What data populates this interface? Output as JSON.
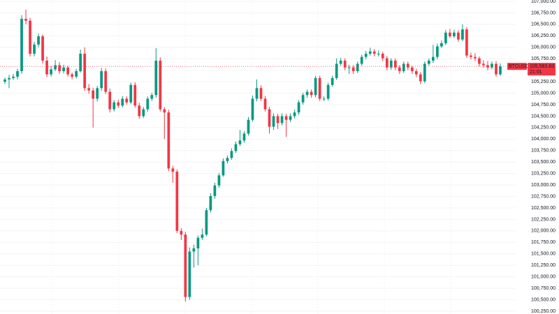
{
  "chart_data": {
    "type": "candlestick",
    "up_color": "#089981",
    "down_color": "#f23645",
    "grid": true,
    "ylim": [
      100250,
      107000
    ],
    "yticks": [
      {
        "value": 107000,
        "label": "107,000.00"
      },
      {
        "value": 106750,
        "label": "106,750.00"
      },
      {
        "value": 106500,
        "label": "106,500.00"
      },
      {
        "value": 106250,
        "label": "106,250.00"
      },
      {
        "value": 106000,
        "label": "106,000.00"
      },
      {
        "value": 105750,
        "label": "105,750.00"
      },
      {
        "value": 105500,
        "label": "105,500.00"
      },
      {
        "value": 105250,
        "label": "105,250.00"
      },
      {
        "value": 105000,
        "label": "105,000.00"
      },
      {
        "value": 104750,
        "label": "104,750.00"
      },
      {
        "value": 104500,
        "label": "104,500.00"
      },
      {
        "value": 104250,
        "label": "104,250.00"
      },
      {
        "value": 104000,
        "label": "104,000.00"
      },
      {
        "value": 103750,
        "label": "103,750.00"
      },
      {
        "value": 103500,
        "label": "103,500.00"
      },
      {
        "value": 103250,
        "label": "103,250.00"
      },
      {
        "value": 103000,
        "label": "103,000.00"
      },
      {
        "value": 102750,
        "label": "102,750.00"
      },
      {
        "value": 102500,
        "label": "102,500.00"
      },
      {
        "value": 102250,
        "label": "102,250.00"
      },
      {
        "value": 102000,
        "label": "102,000.00"
      },
      {
        "value": 101750,
        "label": "101,750.00"
      },
      {
        "value": 101500,
        "label": "101,500.00"
      },
      {
        "value": 101250,
        "label": "101,250.00"
      },
      {
        "value": 101000,
        "label": "101,000.00"
      },
      {
        "value": 100750,
        "label": "100,750.00"
      },
      {
        "value": 100500,
        "label": "100,500.00"
      },
      {
        "value": 100250,
        "label": "100,250.00"
      }
    ],
    "symbol": "BTCUSD",
    "last_price": {
      "value": 105583.83,
      "label": "105,583.83"
    },
    "countdown": "21:01",
    "candles": [
      [
        105250,
        105340,
        105200,
        105300
      ],
      [
        105300,
        105400,
        105110,
        105330
      ],
      [
        105330,
        105420,
        105290,
        105360
      ],
      [
        105360,
        105530,
        105300,
        105480
      ],
      [
        105480,
        106700,
        105420,
        106620
      ],
      [
        106620,
        106820,
        106500,
        106580
      ],
      [
        106580,
        106640,
        105800,
        105860
      ],
      [
        105860,
        106120,
        105800,
        106060
      ],
      [
        106060,
        106300,
        106000,
        106240
      ],
      [
        106240,
        106280,
        105650,
        105710
      ],
      [
        105710,
        105800,
        105350,
        105410
      ],
      [
        105410,
        105600,
        105360,
        105520
      ],
      [
        105520,
        105720,
        105480,
        105610
      ],
      [
        105610,
        105680,
        105420,
        105480
      ],
      [
        105480,
        105620,
        105430,
        105560
      ],
      [
        105560,
        105600,
        105360,
        105410
      ],
      [
        105410,
        105450,
        105300,
        105360
      ],
      [
        105360,
        105530,
        105320,
        105480
      ],
      [
        105480,
        105950,
        105450,
        105860
      ],
      [
        105860,
        106000,
        105050,
        105110
      ],
      [
        105110,
        105200,
        104990,
        105060
      ],
      [
        105060,
        105120,
        104250,
        104880
      ],
      [
        104880,
        105160,
        104820,
        105110
      ],
      [
        105110,
        105550,
        105050,
        105480
      ],
      [
        105480,
        105540,
        104980,
        105030
      ],
      [
        105030,
        105100,
        104580,
        104650
      ],
      [
        104650,
        104850,
        104600,
        104800
      ],
      [
        104800,
        104860,
        104680,
        104730
      ],
      [
        104730,
        104940,
        104690,
        104880
      ],
      [
        104880,
        104930,
        104750,
        104800
      ],
      [
        104800,
        105230,
        104760,
        105180
      ],
      [
        105180,
        105240,
        104680,
        104730
      ],
      [
        104730,
        104790,
        104440,
        104500
      ],
      [
        104500,
        104700,
        104460,
        104650
      ],
      [
        104650,
        104930,
        104600,
        104880
      ],
      [
        104880,
        105010,
        104830,
        104960
      ],
      [
        104960,
        105980,
        104900,
        105710
      ],
      [
        105710,
        105780,
        104600,
        104650
      ],
      [
        104650,
        104700,
        104000,
        104580
      ],
      [
        104580,
        104640,
        103300,
        103360
      ],
      [
        103360,
        103420,
        103050,
        103290
      ],
      [
        103290,
        103340,
        101950,
        102000
      ],
      [
        102000,
        102060,
        101800,
        101920
      ],
      [
        101920,
        101980,
        100460,
        100560
      ],
      [
        100560,
        101640,
        100500,
        101550
      ],
      [
        101550,
        101700,
        101200,
        101620
      ],
      [
        101620,
        101900,
        101250,
        101850
      ],
      [
        101850,
        102050,
        101800,
        101920
      ],
      [
        101920,
        102500,
        101880,
        102450
      ],
      [
        102450,
        102820,
        102400,
        102760
      ],
      [
        102760,
        103050,
        102700,
        102990
      ],
      [
        102990,
        103260,
        102940,
        103210
      ],
      [
        103210,
        103580,
        103180,
        103520
      ],
      [
        103520,
        103640,
        103470,
        103590
      ],
      [
        103590,
        103800,
        103550,
        103740
      ],
      [
        103740,
        103950,
        103700,
        103890
      ],
      [
        103890,
        104200,
        103850,
        103970
      ],
      [
        103970,
        104170,
        103920,
        104120
      ],
      [
        104120,
        104480,
        104080,
        104420
      ],
      [
        104420,
        104950,
        104380,
        104880
      ],
      [
        104880,
        105300,
        104820,
        105110
      ],
      [
        105110,
        105170,
        104830,
        104880
      ],
      [
        104880,
        104940,
        104600,
        104650
      ],
      [
        104650,
        104700,
        104120,
        104270
      ],
      [
        104270,
        104560,
        104200,
        104500
      ],
      [
        104500,
        104550,
        104220,
        104350
      ],
      [
        104350,
        104560,
        104300,
        104500
      ],
      [
        104500,
        104550,
        104050,
        104420
      ],
      [
        104420,
        104560,
        104370,
        104500
      ],
      [
        104500,
        104640,
        104450,
        104580
      ],
      [
        104580,
        104850,
        104530,
        104800
      ],
      [
        104800,
        105010,
        104750,
        104960
      ],
      [
        104960,
        105080,
        104900,
        105030
      ],
      [
        105030,
        105080,
        104900,
        104960
      ],
      [
        104960,
        105380,
        104910,
        105330
      ],
      [
        105330,
        105380,
        104830,
        104880
      ],
      [
        104880,
        104930,
        104830,
        104880
      ],
      [
        104880,
        105230,
        104840,
        105180
      ],
      [
        105180,
        105380,
        105140,
        105330
      ],
      [
        105330,
        105760,
        105290,
        105640
      ],
      [
        105640,
        105770,
        105600,
        105710
      ],
      [
        105710,
        105760,
        105500,
        105560
      ],
      [
        105560,
        105620,
        105420,
        105560
      ],
      [
        105560,
        105610,
        105420,
        105480
      ],
      [
        105480,
        105690,
        105440,
        105640
      ],
      [
        105640,
        105840,
        105600,
        105790
      ],
      [
        105790,
        105920,
        105740,
        105860
      ],
      [
        105860,
        105990,
        105820,
        105910
      ],
      [
        105910,
        105960,
        105800,
        105860
      ],
      [
        105860,
        105930,
        105800,
        105860
      ],
      [
        105860,
        105900,
        105700,
        105760
      ],
      [
        105760,
        105810,
        105500,
        105560
      ],
      [
        105560,
        105760,
        105510,
        105710
      ],
      [
        105710,
        105760,
        105500,
        105560
      ],
      [
        105560,
        105610,
        105420,
        105480
      ],
      [
        105480,
        105690,
        105440,
        105640
      ],
      [
        105640,
        105690,
        105500,
        105560
      ],
      [
        105560,
        105600,
        105420,
        105480
      ],
      [
        105480,
        105530,
        105350,
        105410
      ],
      [
        105410,
        105460,
        105200,
        105260
      ],
      [
        105260,
        105690,
        105220,
        105640
      ],
      [
        105640,
        105760,
        105600,
        105710
      ],
      [
        105710,
        106050,
        105660,
        105790
      ],
      [
        105790,
        106080,
        105740,
        106020
      ],
      [
        106020,
        106150,
        105980,
        106090
      ],
      [
        106090,
        106380,
        106050,
        106320
      ],
      [
        106320,
        106400,
        106200,
        106240
      ],
      [
        106240,
        106380,
        106200,
        106320
      ],
      [
        106320,
        106370,
        106120,
        106170
      ],
      [
        106170,
        106500,
        106130,
        106390
      ],
      [
        106390,
        106440,
        105770,
        105820
      ],
      [
        105820,
        105880,
        105740,
        105790
      ],
      [
        105790,
        105870,
        105700,
        105760
      ],
      [
        105760,
        105800,
        105580,
        105640
      ],
      [
        105640,
        105720,
        105560,
        105610
      ],
      [
        105610,
        105700,
        105500,
        105560
      ],
      [
        105560,
        105690,
        105520,
        105640
      ],
      [
        105640,
        105700,
        105360,
        105410
      ],
      [
        105410,
        105650,
        105380,
        105583.83
      ]
    ]
  }
}
